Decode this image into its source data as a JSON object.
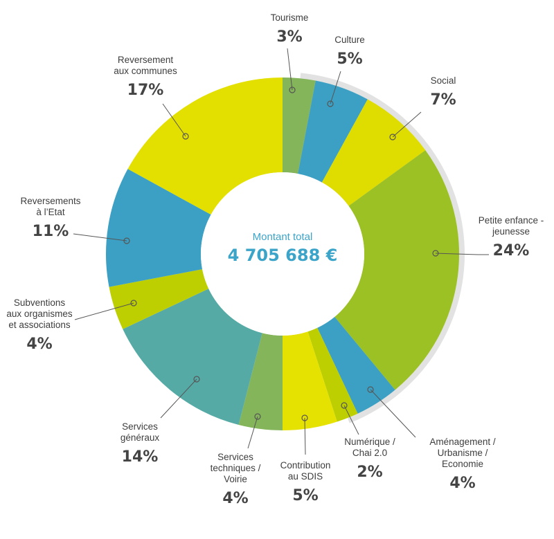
{
  "chart_data": {
    "type": "pie",
    "variant": "donut",
    "center_title": "Montant total",
    "center_value": "4 705 688 €",
    "slices": [
      {
        "name_lines": [
          "Tourisme"
        ],
        "value": 3,
        "label": "3%",
        "color": "#84b55a"
      },
      {
        "name_lines": [
          "Culture"
        ],
        "value": 5,
        "label": "5%",
        "color": "#3ca0c4"
      },
      {
        "name_lines": [
          "Social"
        ],
        "value": 7,
        "label": "7%",
        "color": "#dfdc00"
      },
      {
        "name_lines": [
          "Petite enfance -",
          "jeunesse"
        ],
        "value": 24,
        "label": "24%",
        "color": "#9cc124"
      },
      {
        "name_lines": [
          "Aménagement /",
          "Urbanisme /",
          "Economie"
        ],
        "value": 4,
        "label": "4%",
        "color": "#3ca0c4"
      },
      {
        "name_lines": [
          "Numérique /",
          "Chai 2.0"
        ],
        "value": 2,
        "label": "2%",
        "color": "#bdcf00"
      },
      {
        "name_lines": [
          "Contribution",
          "au SDIS"
        ],
        "value": 5,
        "label": "5%",
        "color": "#e5e100"
      },
      {
        "name_lines": [
          "Services",
          "techniques /",
          "Voirie"
        ],
        "value": 4,
        "label": "4%",
        "color": "#84b55a"
      },
      {
        "name_lines": [
          "Services",
          "généraux"
        ],
        "value": 14,
        "label": "14%",
        "color": "#55aaa6"
      },
      {
        "name_lines": [
          "Subventions",
          "aux organismes",
          "et associations"
        ],
        "value": 4,
        "label": "4%",
        "color": "#bdcf00"
      },
      {
        "name_lines": [
          "Reversements",
          "à l’Etat"
        ],
        "value": 11,
        "label": "11%",
        "color": "#3ca0c4"
      },
      {
        "name_lines": [
          "Reversement",
          "aux communes"
        ],
        "value": 17,
        "label": "17%",
        "color": "#e3e000"
      }
    ]
  }
}
